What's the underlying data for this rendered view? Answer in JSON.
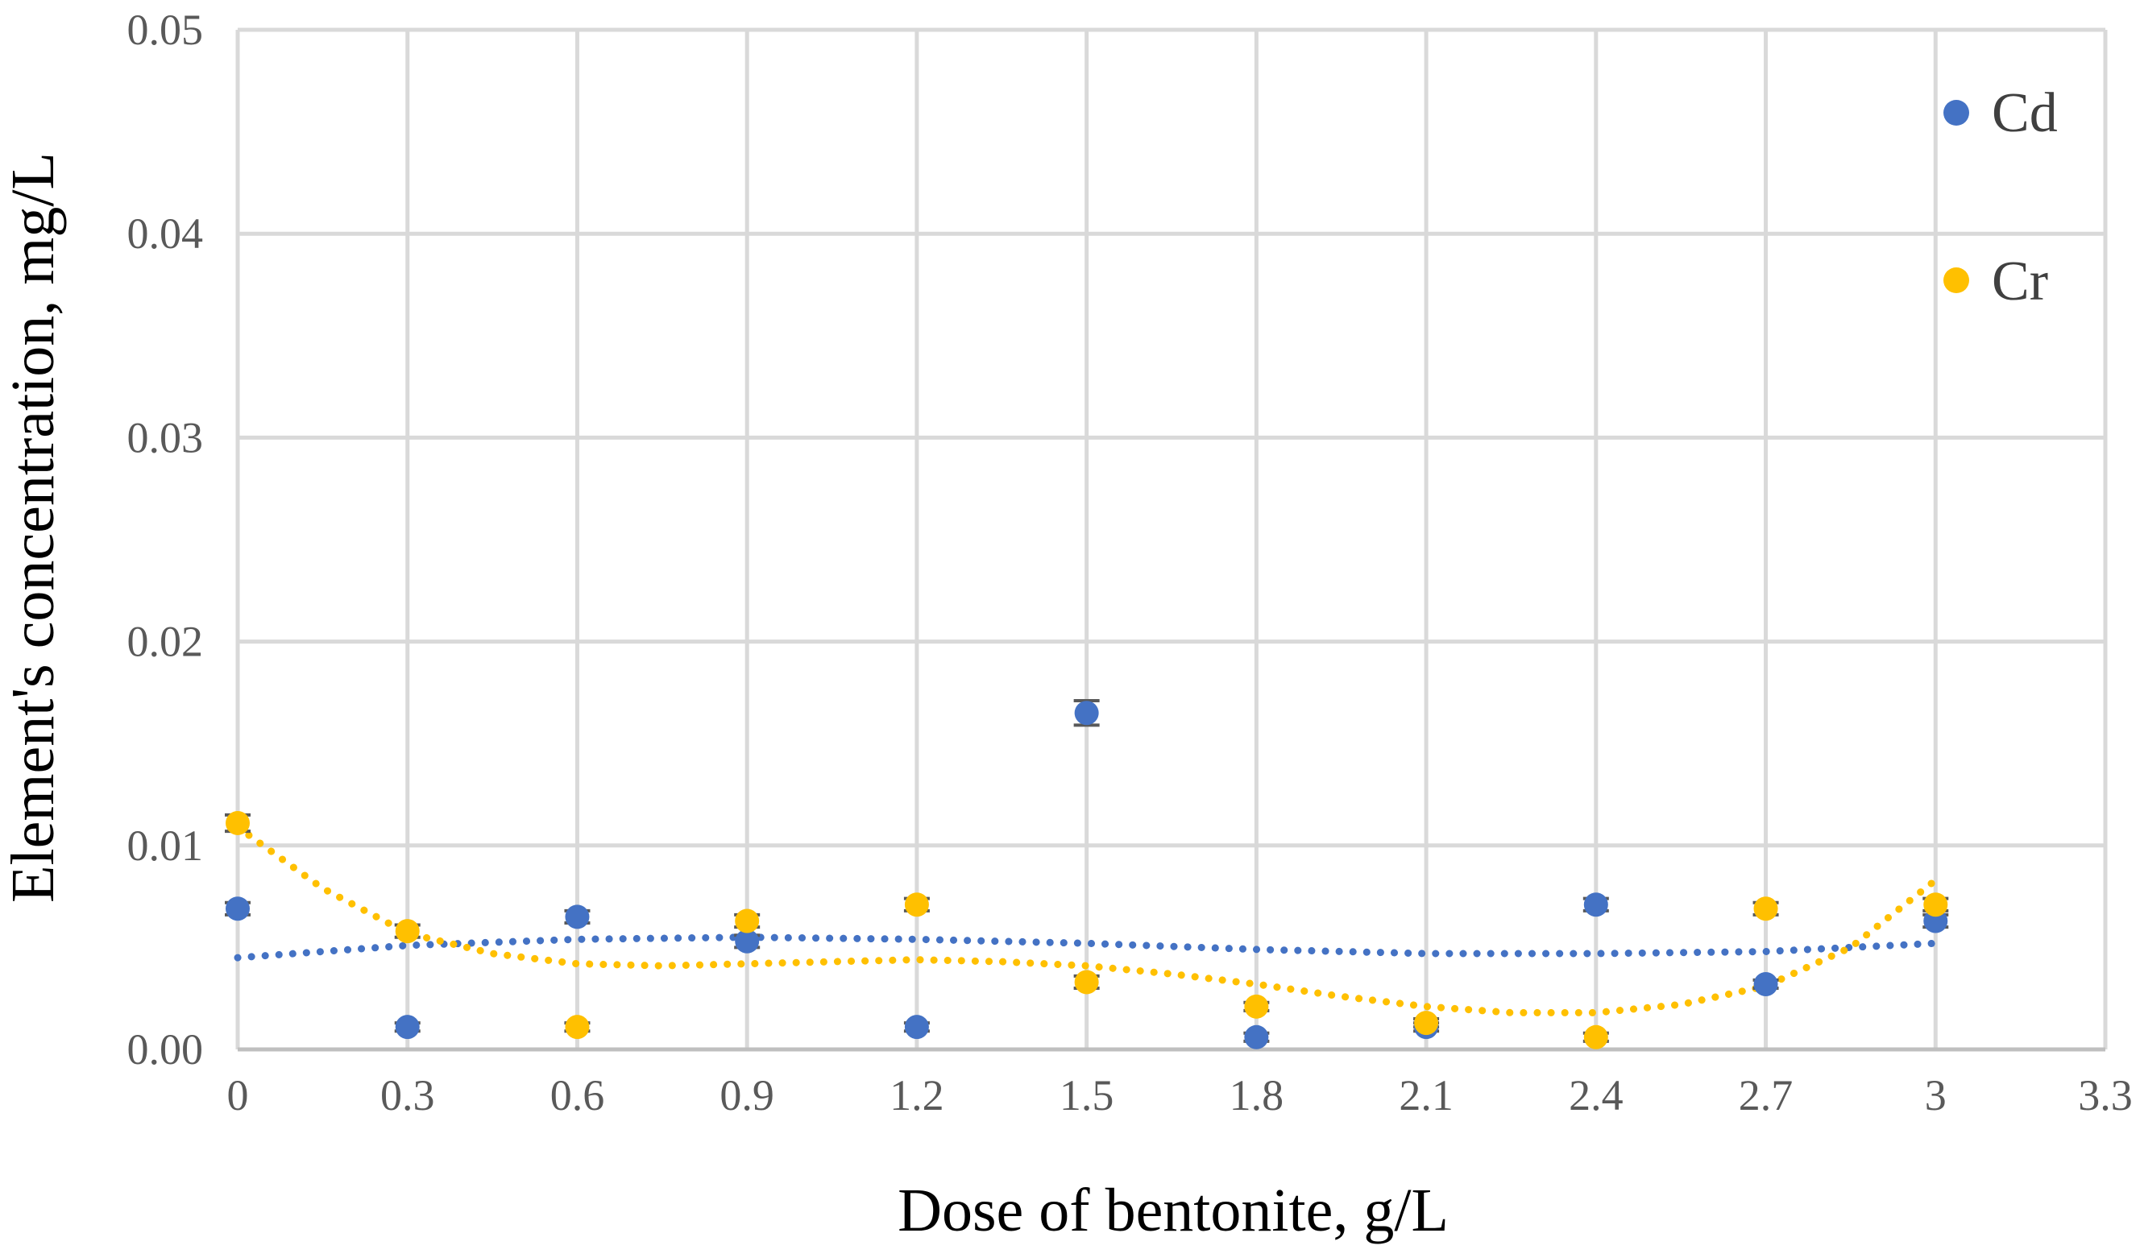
{
  "chart_data": {
    "type": "scatter",
    "title": "",
    "xlabel": "Dose of bentonite, g/L",
    "ylabel": "Element's concentration, mg/L",
    "xlim": [
      0,
      3.3
    ],
    "ylim": [
      0,
      0.05
    ],
    "x_ticks": [
      "0",
      "0.3",
      "0.6",
      "0.9",
      "1.2",
      "1.5",
      "1.8",
      "2.1",
      "2.4",
      "2.7",
      "3",
      "3.3"
    ],
    "y_ticks": [
      "0.00",
      "0.01",
      "0.02",
      "0.03",
      "0.04",
      "0.05"
    ],
    "grid": true,
    "legend_position": "top-right",
    "series": [
      {
        "name": "Cd",
        "color": "#4472C4",
        "x": [
          0,
          0.3,
          0.6,
          0.9,
          1.2,
          1.5,
          1.8,
          2.1,
          2.4,
          2.7,
          3.0
        ],
        "y": [
          0.0069,
          0.0011,
          0.0065,
          0.0053,
          0.0011,
          0.0165,
          0.0006,
          0.0011,
          0.0071,
          0.0032,
          0.0063
        ],
        "error": [
          0.0003,
          0.0002,
          0.0003,
          0.0003,
          0.0002,
          0.0006,
          0.0002,
          0.0002,
          0.0003,
          0.0002,
          0.0003
        ],
        "trendline": {
          "style": "dotted",
          "x": [
            0,
            0.3,
            0.6,
            0.9,
            1.2,
            1.5,
            1.8,
            2.1,
            2.4,
            2.7,
            3.0
          ],
          "y": [
            0.0045,
            0.0051,
            0.0054,
            0.0055,
            0.0054,
            0.0052,
            0.0049,
            0.0047,
            0.0047,
            0.0048,
            0.0052
          ]
        }
      },
      {
        "name": "Cr",
        "color": "#FFC000",
        "x": [
          0,
          0.3,
          0.6,
          0.9,
          1.2,
          1.5,
          1.8,
          2.1,
          2.4,
          2.7,
          3.0
        ],
        "y": [
          0.0111,
          0.0058,
          0.0011,
          0.0063,
          0.0071,
          0.0033,
          0.0021,
          0.0013,
          0.0006,
          0.0069,
          0.0071
        ],
        "error": [
          0.0004,
          0.0003,
          0.0002,
          0.0003,
          0.0003,
          0.0003,
          0.0002,
          0.0002,
          0.0002,
          0.0003,
          0.0003
        ],
        "trendline": {
          "style": "dotted",
          "x": [
            0,
            0.15,
            0.3,
            0.45,
            0.6,
            0.75,
            0.9,
            1.05,
            1.2,
            1.35,
            1.5,
            1.65,
            1.8,
            1.95,
            2.1,
            2.25,
            2.4,
            2.55,
            2.7,
            2.85,
            3.0
          ],
          "y": [
            0.0109,
            0.0079,
            0.0057,
            0.0047,
            0.0042,
            0.0041,
            0.0042,
            0.0043,
            0.0044,
            0.0043,
            0.0041,
            0.0037,
            0.0032,
            0.0026,
            0.0021,
            0.0018,
            0.0018,
            0.0022,
            0.0031,
            0.005,
            0.0083
          ]
        }
      }
    ]
  }
}
